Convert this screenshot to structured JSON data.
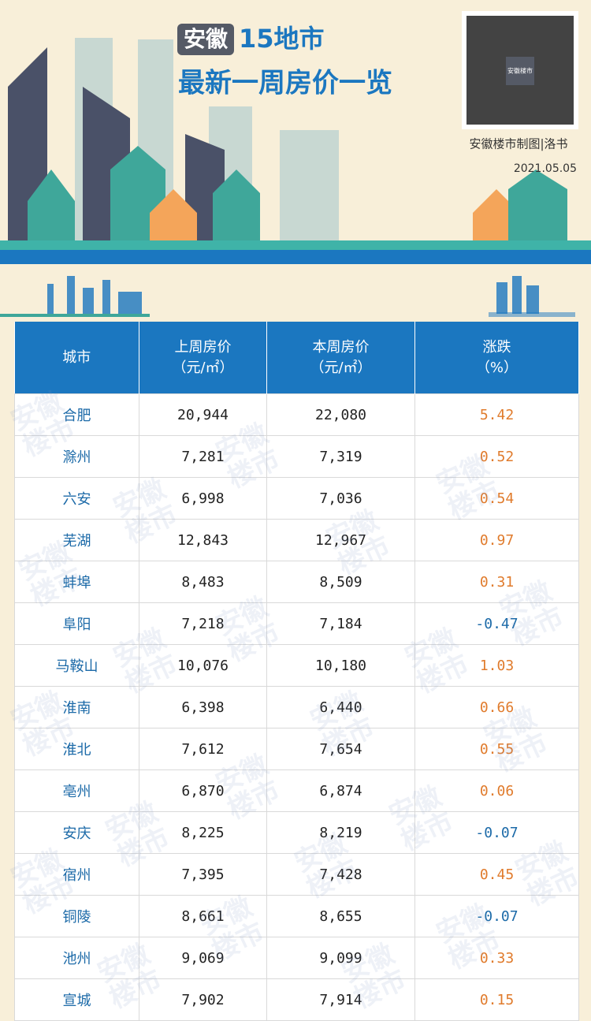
{
  "header": {
    "title_tag": "安徽",
    "title_line1": "15地市",
    "title_line2": "最新一周房价一览",
    "qr_label": "安徽楼市",
    "credit": "安徽楼市制图|洛书",
    "date": "2021.05.05"
  },
  "watermark": "安徽楼市",
  "table": {
    "columns": [
      {
        "label": "城市"
      },
      {
        "label": "上周房价",
        "unit": "（元/㎡）"
      },
      {
        "label": "本周房价",
        "unit": "（元/㎡）"
      },
      {
        "label": "涨跌",
        "unit": "（%）"
      }
    ],
    "rows": [
      [
        "合肥",
        "20,944",
        "22,080",
        "5.42"
      ],
      [
        "滁州",
        "7,281",
        "7,319",
        "0.52"
      ],
      [
        "六安",
        "6,998",
        "7,036",
        "0.54"
      ],
      [
        "芜湖",
        "12,843",
        "12,967",
        "0.97"
      ],
      [
        "蚌埠",
        "8,483",
        "8,509",
        "0.31"
      ],
      [
        "阜阳",
        "7,218",
        "7,184",
        "-0.47"
      ],
      [
        "马鞍山",
        "10,076",
        "10,180",
        "1.03"
      ],
      [
        "淮南",
        "6,398",
        "6,440",
        "0.66"
      ],
      [
        "淮北",
        "7,612",
        "7,654",
        "0.55"
      ],
      [
        "亳州",
        "6,870",
        "6,874",
        "0.06"
      ],
      [
        "安庆",
        "8,225",
        "8,219",
        "-0.07"
      ],
      [
        "宿州",
        "7,395",
        "7,428",
        "0.45"
      ],
      [
        "铜陵",
        "8,661",
        "8,655",
        "-0.07"
      ],
      [
        "池州",
        "9,069",
        "9,099",
        "0.33"
      ],
      [
        "宣城",
        "7,902",
        "7,914",
        "0.15"
      ]
    ]
  }
}
